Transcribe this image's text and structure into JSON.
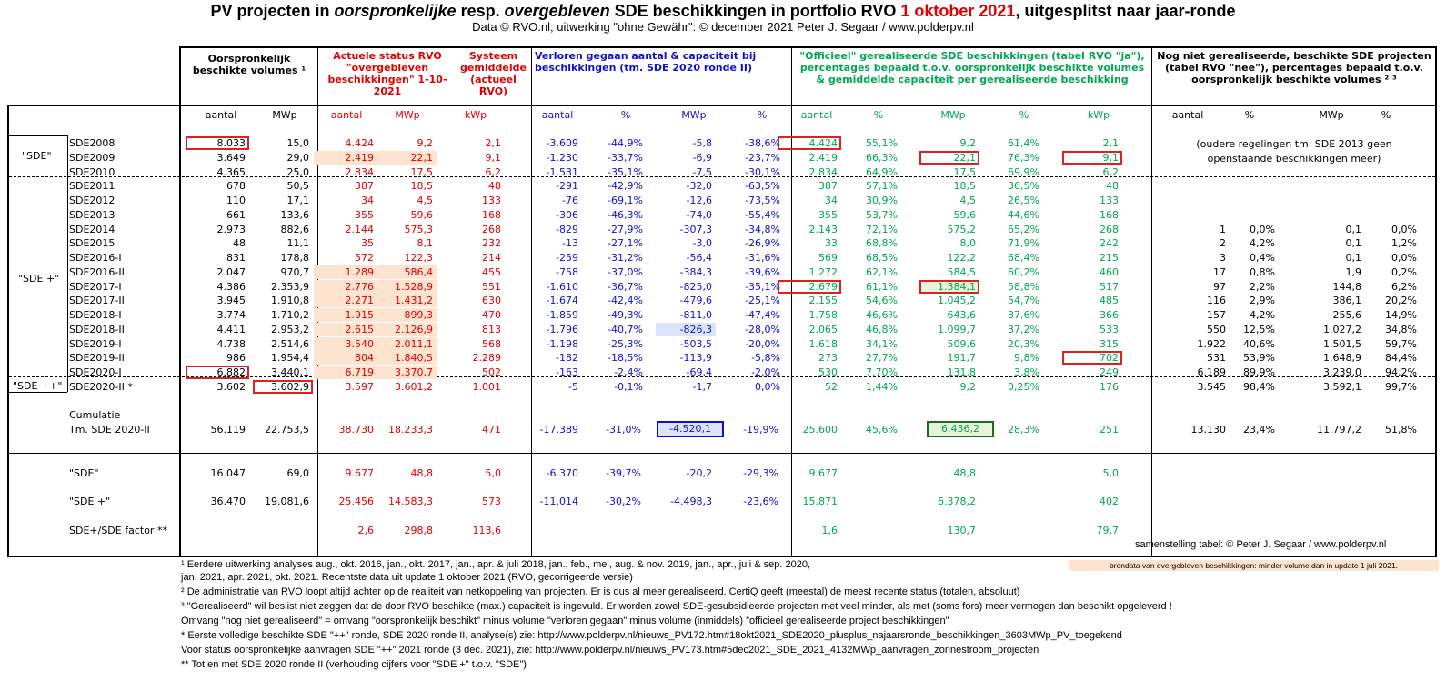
{
  "title": {
    "p1": "PV projecten in ",
    "p2": "oorspronkelijke",
    "p3": " resp. ",
    "p4": "overgebleven",
    "p5": " SDE beschikkingen in portfolio RVO ",
    "p6": "1 oktober 2021",
    "p7": ", uitgesplitst naar jaar-ronde"
  },
  "subtitle": "Data © RVO.nl; uitwerking \"ohne Gewähr\": © december 2021 Peter J. Segaar / www.polderpv.nl",
  "headers": {
    "orig": "Oorspronkelijk beschikte volumes ¹",
    "actueel": "Actuele status RVO \"overgebleven beschikkingen\" 1-10-2021",
    "systeem": "Systeem gemiddelde (actueel RVO)",
    "verloren": "Verloren gegaan aantal & capaciteit bij beschikkingen (tm. SDE 2020 ronde II)",
    "officieel": "\"Officieel\" gerealiseerde SDE beschikkingen (tabel RVO \"ja\"), percentages bepaald t.o.v. oorspronkelijk beschikte volumes & gemiddelde capaciteit per gerealiseerde beschikking",
    "nognniet": "Nog niet gerealiseerde, beschikte SDE projecten (tabel RVO \"nee\"), percentages bepaald t.o.v. oorspronkelijk beschikte volumes ² ³"
  },
  "subheaders": [
    "aantal",
    "MWp",
    "aantal",
    "MWp",
    "kWp",
    "aantal",
    "%",
    "MWp",
    "%",
    "aantal",
    "%",
    "MWp",
    "%",
    "kWp",
    "aantal",
    "%",
    "MWp",
    "%"
  ],
  "group_labels": {
    "sde": "\"SDE\"",
    "sdeplus": "\"SDE +\"",
    "sdeplusplus": "\"SDE ++\""
  },
  "rows": [
    {
      "name": "SDE2008",
      "v": [
        "8.033",
        "15,0",
        "4.424",
        "9,2",
        "2,1",
        "-3.609",
        "-44,9%",
        "-5,8",
        "-38,6%",
        "4.424",
        "55,1%",
        "9,2",
        "61,4%",
        "2,1",
        "",
        "",
        "",
        ""
      ]
    },
    {
      "name": "SDE2009",
      "v": [
        "3.649",
        "29,0",
        "2.419",
        "22,1",
        "9,1",
        "-1.230",
        "-33,7%",
        "-6,9",
        "-23,7%",
        "2.419",
        "66,3%",
        "22,1",
        "76,3%",
        "9,1",
        "",
        "",
        "",
        ""
      ]
    },
    {
      "name": "SDE2010",
      "v": [
        "4.365",
        "25,0",
        "2.834",
        "17,5",
        "6,2",
        "-1.531",
        "-35,1%",
        "-7,5",
        "-30,1%",
        "2.834",
        "64,9%",
        "17,5",
        "69,9%",
        "6,2",
        "",
        "",
        "",
        ""
      ]
    },
    {
      "name": "SDE2011",
      "v": [
        "678",
        "50,5",
        "387",
        "18,5",
        "48",
        "-291",
        "-42,9%",
        "-32,0",
        "-63,5%",
        "387",
        "57,1%",
        "18,5",
        "36,5%",
        "48",
        "",
        "",
        "",
        ""
      ]
    },
    {
      "name": "SDE2012",
      "v": [
        "110",
        "17,1",
        "34",
        "4,5",
        "133",
        "-76",
        "-69,1%",
        "-12,6",
        "-73,5%",
        "34",
        "30,9%",
        "4,5",
        "26,5%",
        "133",
        "",
        "",
        "",
        ""
      ]
    },
    {
      "name": "SDE2013",
      "v": [
        "661",
        "133,6",
        "355",
        "59,6",
        "168",
        "-306",
        "-46,3%",
        "-74,0",
        "-55,4%",
        "355",
        "53,7%",
        "59,6",
        "44,6%",
        "168",
        "",
        "",
        "",
        ""
      ]
    },
    {
      "name": "SDE2014",
      "v": [
        "2.973",
        "882,6",
        "2.144",
        "575,3",
        "268",
        "-829",
        "-27,9%",
        "-307,3",
        "-34,8%",
        "2.143",
        "72,1%",
        "575,2",
        "65,2%",
        "268",
        "1",
        "0,0%",
        "0,1",
        "0,0%"
      ]
    },
    {
      "name": "SDE2015",
      "v": [
        "48",
        "11,1",
        "35",
        "8,1",
        "232",
        "-13",
        "-27,1%",
        "-3,0",
        "-26,9%",
        "33",
        "68,8%",
        "8,0",
        "71,9%",
        "242",
        "2",
        "4,2%",
        "0,1",
        "1,2%"
      ]
    },
    {
      "name": "SDE2016-I",
      "v": [
        "831",
        "178,8",
        "572",
        "122,3",
        "214",
        "-259",
        "-31,2%",
        "-56,4",
        "-31,6%",
        "569",
        "68,5%",
        "122,2",
        "68,4%",
        "215",
        "3",
        "0,4%",
        "0,1",
        "0,0%"
      ]
    },
    {
      "name": "SDE2016-II",
      "v": [
        "2.047",
        "970,7",
        "1.289",
        "586,4",
        "455",
        "-758",
        "-37,0%",
        "-384,3",
        "-39,6%",
        "1.272",
        "62,1%",
        "584,5",
        "60,2%",
        "460",
        "17",
        "0,8%",
        "1,9",
        "0,2%"
      ]
    },
    {
      "name": "SDE2017-I",
      "v": [
        "4.386",
        "2.353,9",
        "2.776",
        "1.528,9",
        "551",
        "-1.610",
        "-36,7%",
        "-825,0",
        "-35,1%",
        "2.679",
        "61,1%",
        "1.384,1",
        "58,8%",
        "517",
        "97",
        "2,2%",
        "144,8",
        "6,2%"
      ]
    },
    {
      "name": "SDE2017-II",
      "v": [
        "3.945",
        "1.910,8",
        "2.271",
        "1.431,2",
        "630",
        "-1.674",
        "-42,4%",
        "-479,6",
        "-25,1%",
        "2.155",
        "54,6%",
        "1.045,2",
        "54,7%",
        "485",
        "116",
        "2,9%",
        "386,1",
        "20,2%"
      ]
    },
    {
      "name": "SDE2018-I",
      "v": [
        "3.774",
        "1.710,2",
        "1.915",
        "899,3",
        "470",
        "-1.859",
        "-49,3%",
        "-811,0",
        "-47,4%",
        "1.758",
        "46,6%",
        "643,6",
        "37,6%",
        "366",
        "157",
        "4,2%",
        "255,6",
        "14,9%"
      ]
    },
    {
      "name": "SDE2018-II",
      "v": [
        "4.411",
        "2.953,2",
        "2.615",
        "2.126,9",
        "813",
        "-1.796",
        "-40,7%",
        "-826,3",
        "-28,0%",
        "2.065",
        "46,8%",
        "1.099,7",
        "37,2%",
        "533",
        "550",
        "12,5%",
        "1.027,2",
        "34,8%"
      ]
    },
    {
      "name": "SDE2019-I",
      "v": [
        "4.738",
        "2.514,6",
        "3.540",
        "2.011,1",
        "568",
        "-1.198",
        "-25,3%",
        "-503,5",
        "-20,0%",
        "1.618",
        "34,1%",
        "509,6",
        "20,3%",
        "315",
        "1.922",
        "40,6%",
        "1.501,5",
        "59,7%"
      ]
    },
    {
      "name": "SDE2019-II",
      "v": [
        "986",
        "1.954,4",
        "804",
        "1.840,5",
        "2.289",
        "-182",
        "-18,5%",
        "-113,9",
        "-5,8%",
        "273",
        "27,7%",
        "191,7",
        "9,8%",
        "702",
        "531",
        "53,9%",
        "1.648,9",
        "84,4%"
      ]
    },
    {
      "name": "SDE2020-I",
      "v": [
        "6.882",
        "3.440,1",
        "6.719",
        "3.370,7",
        "502",
        "-163",
        "-2,4%",
        "-69,4",
        "-2,0%",
        "530",
        "7,70%",
        "131,8",
        "3,8%",
        "249",
        "6.189",
        "89,9%",
        "3.239,0",
        "94,2%"
      ]
    },
    {
      "name": "SDE2020-II *",
      "v": [
        "3.602",
        "3.602,9",
        "3.597",
        "3.601,2",
        "1.001",
        "-5",
        "-0,1%",
        "-1,7",
        "0,0%",
        "52",
        "1,44%",
        "9,2",
        "0,25%",
        "176",
        "3.545",
        "98,4%",
        "3.592,1",
        "99,7%"
      ]
    }
  ],
  "older_note_line1": "(oudere regelingen tm. SDE 2013 geen",
  "older_note_line2": "openstaande beschikkingen meer)",
  "cumulatie": {
    "label1": "Cumulatie",
    "label2": "Tm. SDE 2020-II",
    "v": [
      "56.119",
      "22.753,5",
      "38.730",
      "18.233,3",
      "471",
      "-17.389",
      "-31,0%",
      "-4.520,1",
      "-19,9%",
      "25.600",
      "45,6%",
      "6.436,2",
      "28,3%",
      "251",
      "13.130",
      "23,4%",
      "11.797,2",
      "51,8%"
    ]
  },
  "summary": [
    {
      "name": "\"SDE\"",
      "v": [
        "16.047",
        "69,0",
        "9.677",
        "48,8",
        "5,0",
        "-6.370",
        "-39,7%",
        "-20,2",
        "-29,3%",
        "9.677",
        "",
        "48,8",
        "",
        "5,0",
        "",
        "",
        "",
        ""
      ]
    },
    {
      "name": "\"SDE +\"",
      "v": [
        "36.470",
        "19.081,6",
        "25.456",
        "14.583,3",
        "573",
        "-11.014",
        "-30,2%",
        "-4.498,3",
        "-23,6%",
        "15.871",
        "",
        "6.378,2",
        "",
        "402",
        "",
        "",
        "",
        ""
      ]
    },
    {
      "name": "SDE+/SDE factor **",
      "v": [
        "",
        "",
        "2,6",
        "298,8",
        "113,6",
        "",
        "",
        "",
        "",
        "1,6",
        "",
        "130,7",
        "",
        "79,7",
        "",
        "",
        "",
        ""
      ]
    }
  ],
  "credit": "samenstelling tabel: © Peter J. Segaar / www.polderpv.nl",
  "legend_note": "brondata van overgebleven beschikkingen: minder volume dan in update 1 juli 2021.",
  "footnotes": [
    "¹ Eerdere uitwerking analyses aug., okt. 2016, jan., okt.  2017, jan., apr. & juli 2018, jan., feb., mei, aug. & nov. 2019, jan., apr., juli & sep. 2020,",
    "   jan. 2021, apr. 2021, okt. 2021. Recentste data uit update 1 oktober 2021 (RVO, gecorrigeerde versie)",
    "² De administratie van RVO loopt altijd achter op de realiteit van netkoppeling van projecten. Er is dus al meer gerealiseerd. CertiQ geeft (meestal) de meest recente status (totalen, absoluut)",
    "³ \"Gerealiseerd\" wil beslist niet zeggen dat de door RVO beschikte (max.) capaciteit is ingevuld. Er worden zowel SDE-gesubsidieerde projecten met veel minder,  als met (soms fors) meer  vermogen dan beschikt opgeleverd !",
    "Omvang \"nog niet gerealiseerd\" = omvang \"oorspronkelijk beschikt\" minus volume \"verloren gegaan\" minus volume (inmiddels) \"officieel gerealiseerde project beschikkingen\"",
    "* Eerste volledige beschikte SDE \"++\" ronde, SDE 2020 ronde II, analyse(s) zie: http://www.polderpv.nl/nieuws_PV172.htm#18okt2021_SDE2020_plusplus_najaarsronde_beschikkingen_3603MWp_PV_toegekend",
    "Voor status oorspronkelijke aanvragen SDE \"++\" 2021 ronde (3 dec. 2021), zie: http://www.polderpv.nl/nieuws_PV173.htm#5dec2021_SDE_2021_4132MWp_aanvragen_zonnestroom_projecten",
    "** Tot en met SDE 2020 ronde II (verhouding cijfers voor \"SDE +\" t.o.v. \"SDE\")"
  ]
}
